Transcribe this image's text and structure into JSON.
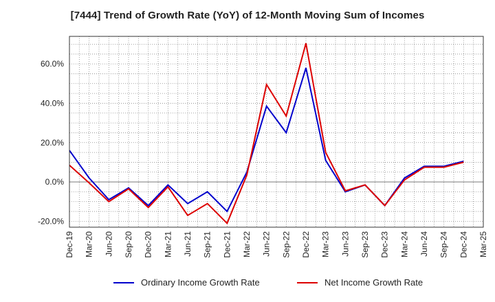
{
  "chart_data": {
    "type": "line",
    "title": "[7444]  Trend of Growth Rate (YoY) of 12-Month Moving Sum of Incomes",
    "xlabel": "",
    "ylabel": "",
    "x": [
      "Dec-19",
      "Mar-20",
      "Jun-20",
      "Sep-20",
      "Dec-20",
      "Mar-21",
      "Jun-21",
      "Sep-21",
      "Dec-21",
      "Mar-22",
      "Jun-22",
      "Sep-22",
      "Dec-22",
      "Mar-23",
      "Jun-23",
      "Sep-23",
      "Dec-23",
      "Mar-24",
      "Jun-24",
      "Sep-24",
      "Dec-24",
      "Mar-25"
    ],
    "y_ticks": [
      "-20.0%",
      "0.0%",
      "20.0%",
      "40.0%",
      "60.0%"
    ],
    "y_tick_values": [
      -20,
      0,
      20,
      40,
      60
    ],
    "ylim": [
      -23,
      74
    ],
    "grid": true,
    "legend_position": "bottom",
    "series": [
      {
        "name": "Ordinary Income Growth Rate",
        "color": "#0000cc",
        "values": [
          16.0,
          2.0,
          -9.0,
          -3.0,
          -12.0,
          -1.5,
          -11.0,
          -5.0,
          -15.0,
          5.0,
          38.5,
          25.0,
          58.0,
          11.0,
          -5.0,
          -1.5,
          -12.0,
          2.0,
          8.0,
          8.0,
          10.5,
          null
        ]
      },
      {
        "name": "Net Income Growth Rate",
        "color": "#dd0000",
        "values": [
          8.5,
          -0.5,
          -10.0,
          -3.5,
          -13.0,
          -2.5,
          -17.0,
          -11.0,
          -21.0,
          3.5,
          49.5,
          33.5,
          70.5,
          15.0,
          -4.5,
          -1.5,
          -12.0,
          1.0,
          7.5,
          7.5,
          10.0,
          null
        ]
      }
    ]
  }
}
